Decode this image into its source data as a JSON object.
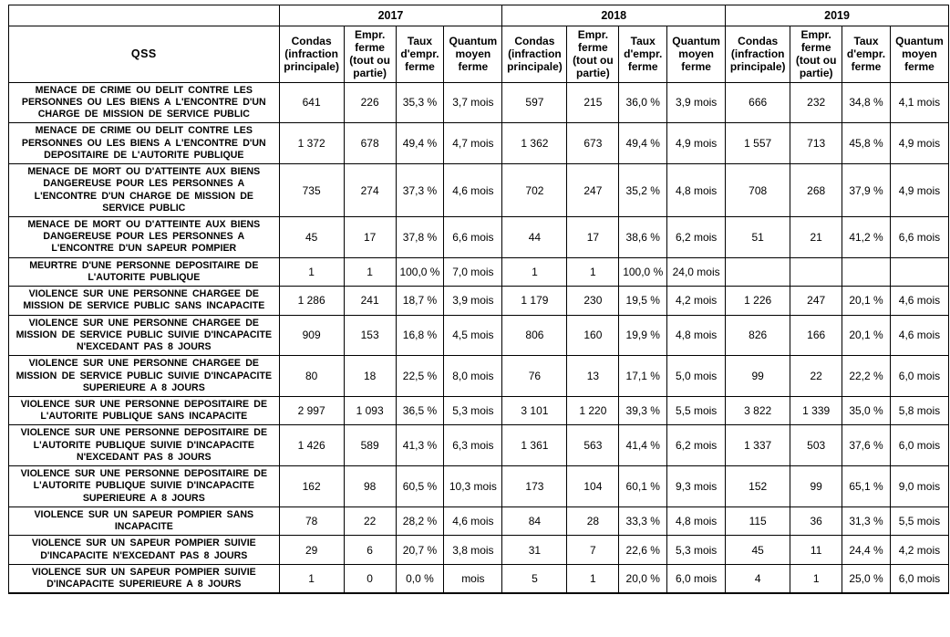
{
  "table": {
    "corner_label": "QSS",
    "years": [
      "2017",
      "2018",
      "2019"
    ],
    "metric_headers": [
      "Condas (infraction principale)",
      "Empr. ferme (tout ou partie)",
      "Taux d'empr. ferme",
      "Quantum moyen ferme"
    ],
    "rows": [
      {
        "label": "MENACE DE CRIME OU DELIT CONTRE LES PERSONNES OU LES BIENS A L'ENCONTRE D'UN CHARGE DE MISSION DE SERVICE PUBLIC",
        "values": [
          "641",
          "226",
          "35,3 %",
          "3,7 mois",
          "597",
          "215",
          "36,0 %",
          "3,9 mois",
          "666",
          "232",
          "34,8 %",
          "4,1 mois"
        ]
      },
      {
        "label": "MENACE DE CRIME OU DELIT CONTRE LES PERSONNES OU LES BIENS A L'ENCONTRE D'UN DEPOSITAIRE DE L'AUTORITE PUBLIQUE",
        "values": [
          "1 372",
          "678",
          "49,4 %",
          "4,7 mois",
          "1 362",
          "673",
          "49,4 %",
          "4,9 mois",
          "1 557",
          "713",
          "45,8 %",
          "4,9 mois"
        ]
      },
      {
        "label": "MENACE DE MORT OU D'ATTEINTE AUX BIENS DANGEREUSE POUR LES PERSONNES A L'ENCONTRE D'UN CHARGE DE MISSION DE SERVICE PUBLIC",
        "values": [
          "735",
          "274",
          "37,3 %",
          "4,6 mois",
          "702",
          "247",
          "35,2 %",
          "4,8 mois",
          "708",
          "268",
          "37,9 %",
          "4,9 mois"
        ]
      },
      {
        "label": "MENACE DE MORT OU D'ATTEINTE AUX BIENS DANGEREUSE POUR LES PERSONNES A L'ENCONTRE D'UN SAPEUR POMPIER",
        "values": [
          "45",
          "17",
          "37,8 %",
          "6,6 mois",
          "44",
          "17",
          "38,6 %",
          "6,2 mois",
          "51",
          "21",
          "41,2 %",
          "6,6 mois"
        ]
      },
      {
        "label": "MEURTRE D'UNE PERSONNE DEPOSITAIRE DE L'AUTORITE PUBLIQUE",
        "values": [
          "1",
          "1",
          "100,0 %",
          "7,0 mois",
          "1",
          "1",
          "100,0 %",
          "24,0 mois",
          "",
          "",
          "",
          ""
        ]
      },
      {
        "label": "VIOLENCE SUR UNE PERSONNE CHARGEE DE MISSION DE SERVICE PUBLIC SANS INCAPACITE",
        "values": [
          "1 286",
          "241",
          "18,7 %",
          "3,9 mois",
          "1 179",
          "230",
          "19,5 %",
          "4,2 mois",
          "1 226",
          "247",
          "20,1 %",
          "4,6 mois"
        ]
      },
      {
        "label": "VIOLENCE SUR UNE PERSONNE CHARGEE DE MISSION DE SERVICE PUBLIC SUIVIE D'INCAPACITE N'EXCEDANT PAS 8 JOURS",
        "values": [
          "909",
          "153",
          "16,8 %",
          "4,5 mois",
          "806",
          "160",
          "19,9 %",
          "4,8 mois",
          "826",
          "166",
          "20,1 %",
          "4,6 mois"
        ]
      },
      {
        "label": "VIOLENCE SUR UNE PERSONNE CHARGEE DE MISSION DE SERVICE PUBLIC SUIVIE D'INCAPACITE SUPERIEURE A 8 JOURS",
        "values": [
          "80",
          "18",
          "22,5 %",
          "8,0 mois",
          "76",
          "13",
          "17,1 %",
          "5,0 mois",
          "99",
          "22",
          "22,2 %",
          "6,0 mois"
        ]
      },
      {
        "label": "VIOLENCE SUR UNE PERSONNE DEPOSITAIRE DE L'AUTORITE PUBLIQUE SANS INCAPACITE",
        "values": [
          "2 997",
          "1 093",
          "36,5 %",
          "5,3 mois",
          "3 101",
          "1 220",
          "39,3 %",
          "5,5 mois",
          "3 822",
          "1 339",
          "35,0 %",
          "5,8 mois"
        ]
      },
      {
        "label": "VIOLENCE SUR UNE PERSONNE DEPOSITAIRE DE L'AUTORITE PUBLIQUE SUIVIE D'INCAPACITE N'EXCEDANT PAS 8 JOURS",
        "values": [
          "1 426",
          "589",
          "41,3 %",
          "6,3 mois",
          "1 361",
          "563",
          "41,4 %",
          "6,2 mois",
          "1 337",
          "503",
          "37,6 %",
          "6,0 mois"
        ]
      },
      {
        "label": "VIOLENCE SUR UNE PERSONNE DEPOSITAIRE DE L'AUTORITE PUBLIQUE SUIVIE D'INCAPACITE SUPERIEURE A 8 JOURS",
        "values": [
          "162",
          "98",
          "60,5 %",
          "10,3 mois",
          "173",
          "104",
          "60,1 %",
          "9,3 mois",
          "152",
          "99",
          "65,1 %",
          "9,0 mois"
        ]
      },
      {
        "label": "VIOLENCE SUR UN SAPEUR POMPIER SANS INCAPACITE",
        "values": [
          "78",
          "22",
          "28,2 %",
          "4,6 mois",
          "84",
          "28",
          "33,3 %",
          "4,8 mois",
          "115",
          "36",
          "31,3 %",
          "5,5 mois"
        ]
      },
      {
        "label": "VIOLENCE SUR UN SAPEUR POMPIER SUIVIE D'INCAPACITE N'EXCEDANT PAS 8 JOURS",
        "values": [
          "29",
          "6",
          "20,7 %",
          "3,8 mois",
          "31",
          "7",
          "22,6 %",
          "5,3 mois",
          "45",
          "11",
          "24,4 %",
          "4,2 mois"
        ]
      },
      {
        "label": "VIOLENCE SUR UN SAPEUR POMPIER SUIVIE D'INCAPACITE SUPERIEURE A 8 JOURS",
        "values": [
          "1",
          "0",
          "0,0 %",
          "mois",
          "5",
          "1",
          "20,0 %",
          "6,0 mois",
          "4",
          "1",
          "25,0 %",
          "6,0 mois"
        ]
      }
    ]
  },
  "colors": {
    "border": "#000000",
    "text": "#000000",
    "background": "#ffffff"
  }
}
